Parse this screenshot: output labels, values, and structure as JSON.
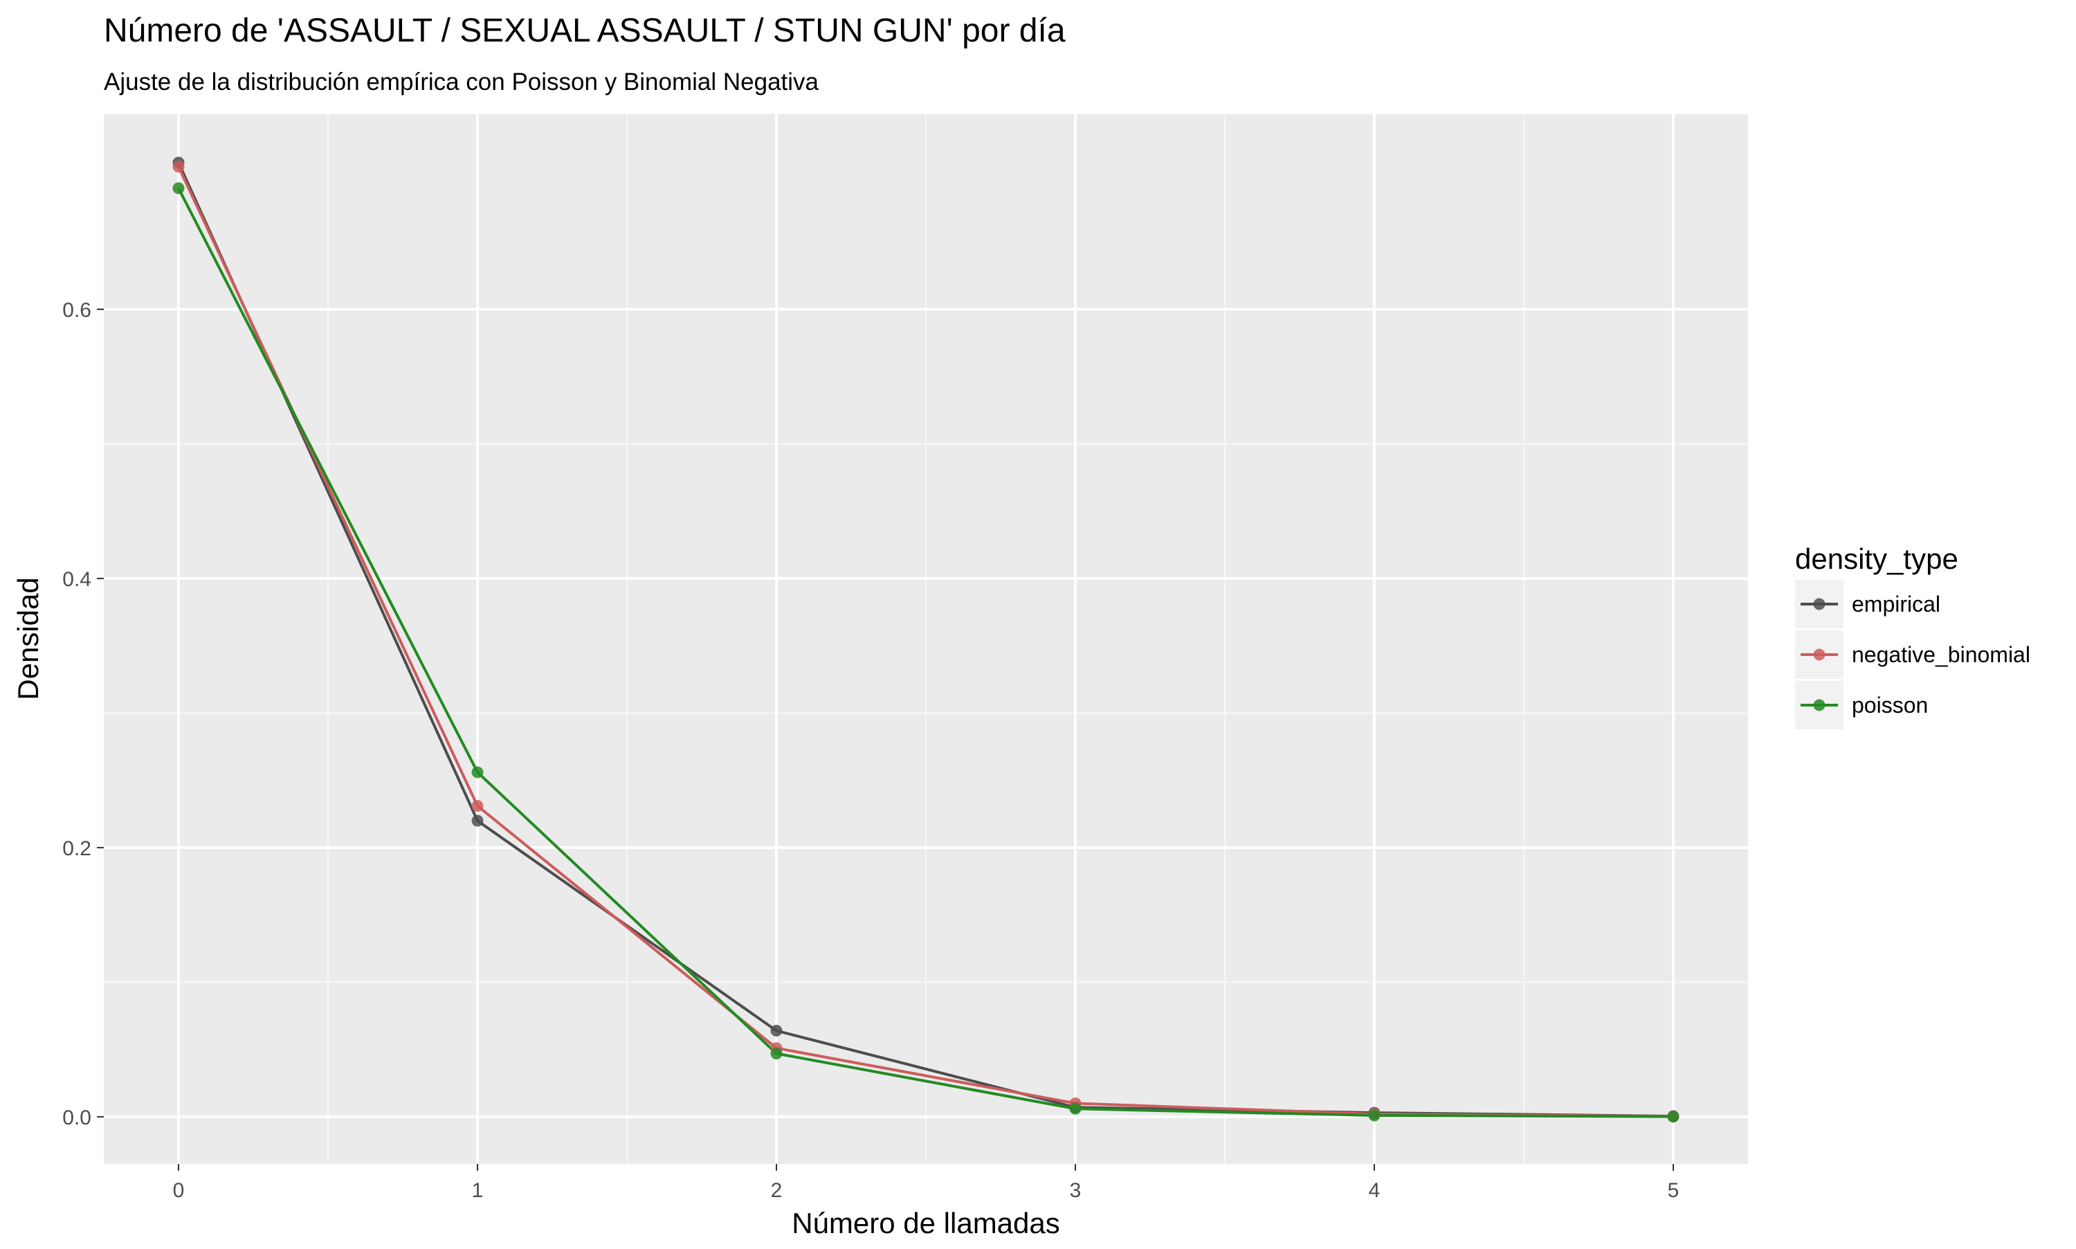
{
  "chart_data": {
    "type": "line",
    "title": "Número de 'ASSAULT / SEXUAL ASSAULT / STUN GUN' por día",
    "subtitle": "Ajuste de la distribución empírica con Poisson y Binomial Negativa",
    "xlabel": "Número de llamadas",
    "ylabel": "Densidad",
    "x": [
      0,
      1,
      2,
      3,
      4,
      5
    ],
    "xlim": [
      -0.25,
      5.25
    ],
    "ylim": [
      -0.035,
      0.745
    ],
    "x_ticks": [
      0,
      1,
      2,
      3,
      4,
      5
    ],
    "x_tick_labels": [
      "0",
      "1",
      "2",
      "3",
      "4",
      "5"
    ],
    "y_ticks": [
      0.0,
      0.2,
      0.4,
      0.6
    ],
    "y_tick_labels": [
      "0.0",
      "0.2",
      "0.4",
      "0.6"
    ],
    "grid": true,
    "legend": {
      "title": "density_type",
      "position": "right"
    },
    "series": [
      {
        "name": "empirical",
        "color": "#4d4d4d",
        "values": [
          0.709,
          0.22,
          0.064,
          0.007,
          0.003,
          0.0005
        ]
      },
      {
        "name": "negative_binomial",
        "color": "#cd5c5c",
        "values": [
          0.706,
          0.231,
          0.051,
          0.01,
          0.002,
          0.0003
        ]
      },
      {
        "name": "poisson",
        "color": "#228b22",
        "values": [
          0.69,
          0.256,
          0.047,
          0.006,
          0.001,
          0.0001
        ]
      }
    ]
  }
}
